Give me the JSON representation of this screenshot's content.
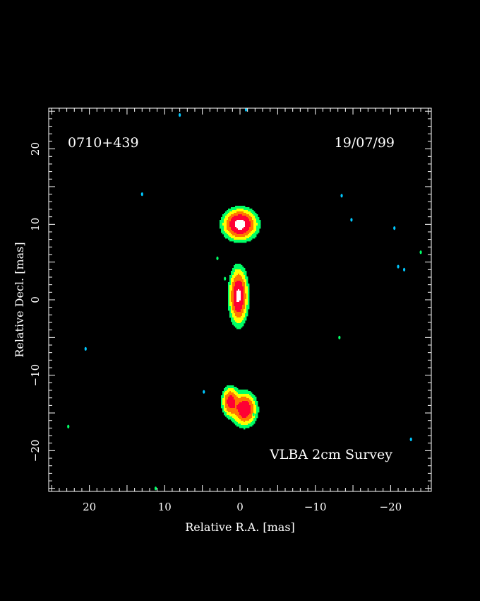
{
  "colors": {
    "background": "#000000",
    "frame": "#ffffff",
    "text": "#ffffff"
  },
  "chart_data": {
    "type": "heatmap",
    "source_name": "0710+439",
    "date": "19/07/99",
    "survey_label": "VLBA 2cm Survey",
    "xlabel": "Relative R.A. [mas]",
    "ylabel": "Relative Decl. [mas]",
    "xlim": [
      25.4,
      -25.4
    ],
    "ylim": [
      -25.4,
      25.4
    ],
    "x_ticks": [
      20,
      10,
      0,
      -10,
      -20
    ],
    "x_tick_labels": [
      "20",
      "10",
      "0",
      "−10",
      "−20"
    ],
    "y_ticks": [
      20,
      10,
      0,
      -10,
      -20
    ],
    "y_tick_labels": [
      "20",
      "10",
      "0",
      "−10",
      "−20"
    ],
    "grid": false,
    "colormap": [
      "#00c8ff",
      "#00ff66",
      "#ffff00",
      "#ff7700",
      "#ff0033",
      "#ffffff"
    ],
    "components": [
      {
        "name": "northern-component",
        "x": 0.0,
        "y": 10.0,
        "peak": 1.0,
        "sx": 1.1,
        "sy": 1.0
      },
      {
        "name": "core-component",
        "x": 0.2,
        "y": 0.5,
        "peak": 0.9,
        "sx": 0.6,
        "sy": 1.8
      },
      {
        "name": "southern-component-east",
        "x": 1.3,
        "y": -13.5,
        "peak": 0.6,
        "sx": 0.55,
        "sy": 1.0
      },
      {
        "name": "southern-component-west",
        "x": -0.6,
        "y": -14.5,
        "peak": 0.75,
        "sx": 0.8,
        "sy": 1.1
      }
    ],
    "noise_patches": [
      {
        "x": 8.0,
        "y": 24.5,
        "level": 0
      },
      {
        "x": -0.8,
        "y": 25.2,
        "level": 0
      },
      {
        "x": 13.0,
        "y": 14.0,
        "level": 0
      },
      {
        "x": -13.5,
        "y": 13.8,
        "level": 0
      },
      {
        "x": -14.8,
        "y": 10.6,
        "level": 0
      },
      {
        "x": -20.5,
        "y": 9.5,
        "level": 0
      },
      {
        "x": -24.0,
        "y": 6.3,
        "level": 1
      },
      {
        "x": -21.0,
        "y": 4.4,
        "level": 0
      },
      {
        "x": -21.8,
        "y": 4.0,
        "level": 0
      },
      {
        "x": 3.0,
        "y": 5.5,
        "level": 1
      },
      {
        "x": 2.0,
        "y": 2.8,
        "level": 1
      },
      {
        "x": 20.5,
        "y": -6.5,
        "level": 0
      },
      {
        "x": -13.2,
        "y": -5.0,
        "level": 1
      },
      {
        "x": 4.8,
        "y": -12.2,
        "level": 0
      },
      {
        "x": -1.8,
        "y": -15.2,
        "level": 1
      },
      {
        "x": 22.8,
        "y": -16.8,
        "level": 1
      },
      {
        "x": 11.2,
        "y": -25.0,
        "level": 1
      },
      {
        "x": -22.7,
        "y": -18.5,
        "level": 0
      }
    ]
  }
}
